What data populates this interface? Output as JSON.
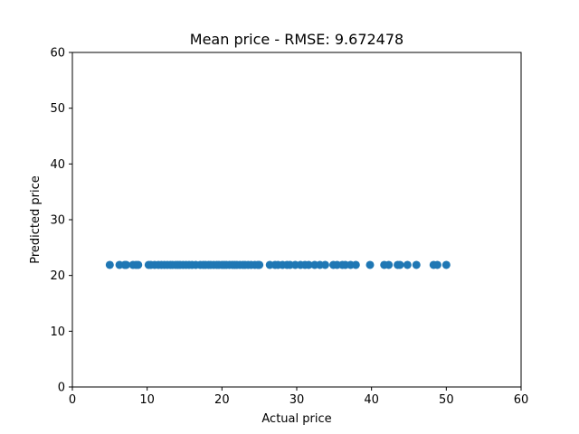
{
  "chart_data": {
    "type": "scatter",
    "title": "Mean price - RMSE: 9.672478",
    "xlabel": "Actual price",
    "ylabel": "Predicted price",
    "xlim": [
      0,
      60
    ],
    "ylim": [
      0,
      60
    ],
    "xticks": [
      0,
      10,
      20,
      30,
      40,
      50,
      60
    ],
    "yticks": [
      0,
      10,
      20,
      30,
      40,
      50,
      60
    ],
    "grid": false,
    "marker_color": "#1f77b4",
    "series": [
      {
        "x": [
          5.0,
          6.3,
          7.0,
          7.2,
          8.1,
          8.5,
          8.8,
          10.2,
          10.5,
          11.0,
          11.5,
          11.9,
          12.3,
          12.7,
          13.1,
          13.4,
          13.8,
          14.1,
          14.4,
          14.8,
          15.2,
          15.6,
          16.0,
          16.5,
          17.1,
          17.5,
          17.8,
          18.2,
          18.5,
          18.9,
          19.3,
          19.6,
          20.0,
          20.3,
          20.6,
          21.0,
          21.4,
          21.7,
          22.0,
          22.4,
          22.8,
          23.1,
          23.5,
          23.9,
          24.4,
          24.8,
          25.0,
          26.4,
          27.1,
          27.5,
          28.1,
          28.7,
          29.1,
          29.8,
          30.5,
          31.1,
          31.6,
          32.4,
          33.1,
          33.8,
          34.9,
          35.4,
          36.1,
          36.5,
          37.2,
          37.9,
          39.8,
          41.7,
          42.3,
          43.5,
          43.8,
          44.8,
          46.0,
          48.3,
          48.8,
          50.0
        ],
        "y": [
          21.9,
          21.9,
          21.9,
          21.9,
          21.9,
          21.9,
          21.9,
          21.9,
          21.9,
          21.9,
          21.9,
          21.9,
          21.9,
          21.9,
          21.9,
          21.9,
          21.9,
          21.9,
          21.9,
          21.9,
          21.9,
          21.9,
          21.9,
          21.9,
          21.9,
          21.9,
          21.9,
          21.9,
          21.9,
          21.9,
          21.9,
          21.9,
          21.9,
          21.9,
          21.9,
          21.9,
          21.9,
          21.9,
          21.9,
          21.9,
          21.9,
          21.9,
          21.9,
          21.9,
          21.9,
          21.9,
          21.9,
          21.9,
          21.9,
          21.9,
          21.9,
          21.9,
          21.9,
          21.9,
          21.9,
          21.9,
          21.9,
          21.9,
          21.9,
          21.9,
          21.9,
          21.9,
          21.9,
          21.9,
          21.9,
          21.9,
          21.9,
          21.9,
          21.9,
          21.9,
          21.9,
          21.9,
          21.9,
          21.9,
          21.9,
          21.9
        ]
      }
    ]
  }
}
